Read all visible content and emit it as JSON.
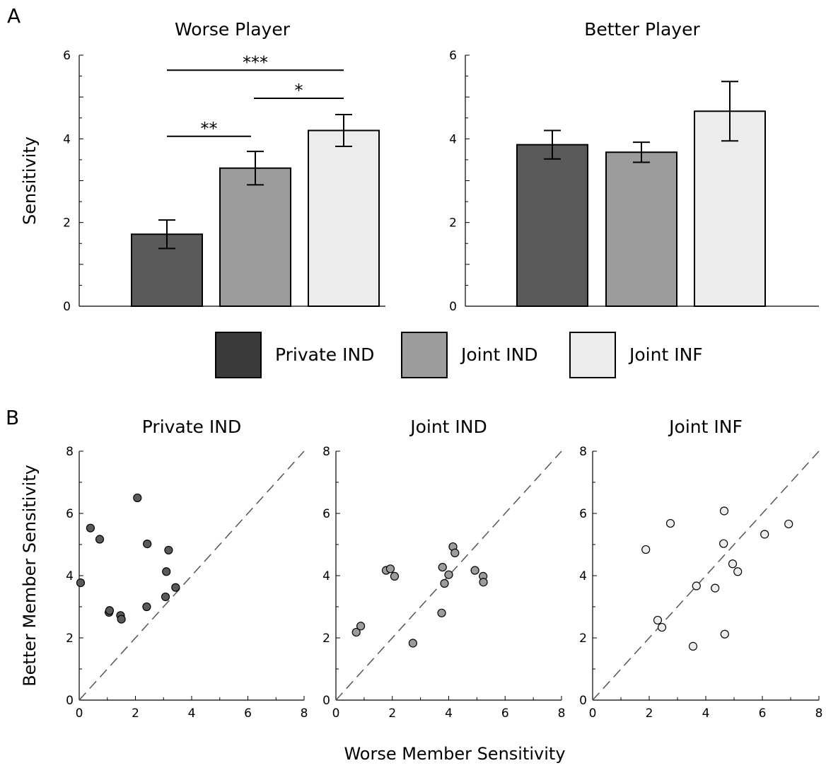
{
  "panels": {
    "a_letter": "A",
    "b_letter": "B"
  },
  "chart_data": [
    {
      "type": "bar",
      "title": "Worse Player",
      "ylabel": "Sensitivity",
      "ylim": [
        0,
        6
      ],
      "yticks": [
        "0",
        "2",
        "4",
        "6"
      ],
      "categories": [
        "Private IND",
        "Joint IND",
        "Joint INF"
      ],
      "values": [
        1.72,
        3.3,
        4.2
      ],
      "errors": [
        0.34,
        0.4,
        0.38
      ],
      "colors": [
        "#5a5a5a",
        "#9c9c9c",
        "#ececec"
      ],
      "significance": [
        {
          "label": "***",
          "from": 0,
          "to": 2,
          "y": 5.64
        },
        {
          "label": "*",
          "from": 1,
          "to": 2,
          "y": 4.97
        },
        {
          "label": "**",
          "from": 0,
          "to": 1,
          "y": 4.06
        }
      ]
    },
    {
      "type": "bar",
      "title": "Better Player",
      "ylim": [
        0,
        6
      ],
      "yticks": [
        "0",
        "2",
        "4",
        "6"
      ],
      "categories": [
        "Private IND",
        "Joint IND",
        "Joint INF"
      ],
      "values": [
        3.86,
        3.68,
        4.66
      ],
      "errors": [
        0.34,
        0.24,
        0.71
      ],
      "colors": [
        "#5a5a5a",
        "#9c9c9c",
        "#ececec"
      ]
    },
    {
      "type": "scatter",
      "title": "Private IND",
      "ylabel": "Better Member Sensitivity",
      "xlim": [
        0,
        8
      ],
      "ylim": [
        0,
        8
      ],
      "xticks": [
        "0",
        "2",
        "4",
        "6",
        "8"
      ],
      "yticks": [
        "0",
        "2",
        "4",
        "6",
        "8"
      ],
      "color": "#5a5a5a",
      "points": [
        [
          0.05,
          3.77
        ],
        [
          0.4,
          5.53
        ],
        [
          0.73,
          5.17
        ],
        [
          1.06,
          2.82
        ],
        [
          1.08,
          2.88
        ],
        [
          1.47,
          2.72
        ],
        [
          1.5,
          2.6
        ],
        [
          2.07,
          6.5
        ],
        [
          2.4,
          3.0
        ],
        [
          2.42,
          5.02
        ],
        [
          3.07,
          3.32
        ],
        [
          3.1,
          4.13
        ],
        [
          3.18,
          4.82
        ],
        [
          3.43,
          3.62
        ]
      ]
    },
    {
      "type": "scatter",
      "title": "Joint IND",
      "xlim": [
        0,
        8
      ],
      "ylim": [
        0,
        8
      ],
      "xticks": [
        "0",
        "2",
        "4",
        "6",
        "8"
      ],
      "yticks": [
        "0",
        "2",
        "4",
        "6",
        "8"
      ],
      "color": "#9c9c9c",
      "points": [
        [
          0.72,
          2.18
        ],
        [
          0.88,
          2.38
        ],
        [
          1.78,
          4.17
        ],
        [
          1.93,
          4.22
        ],
        [
          2.08,
          3.98
        ],
        [
          2.73,
          1.83
        ],
        [
          3.75,
          2.8
        ],
        [
          3.78,
          4.27
        ],
        [
          3.85,
          3.75
        ],
        [
          4.0,
          4.03
        ],
        [
          4.15,
          4.93
        ],
        [
          4.22,
          4.73
        ],
        [
          4.93,
          4.17
        ],
        [
          5.22,
          3.98
        ],
        [
          5.23,
          3.79
        ]
      ]
    },
    {
      "type": "scatter",
      "title": "Joint INF",
      "xlim": [
        0,
        8
      ],
      "ylim": [
        0,
        8
      ],
      "xticks": [
        "0",
        "2",
        "4",
        "6",
        "8"
      ],
      "yticks": [
        "0",
        "2",
        "4",
        "6",
        "8"
      ],
      "color": "#ececec",
      "points": [
        [
          1.88,
          4.84
        ],
        [
          2.3,
          2.57
        ],
        [
          2.45,
          2.34
        ],
        [
          2.75,
          5.68
        ],
        [
          3.55,
          1.73
        ],
        [
          3.67,
          3.67
        ],
        [
          4.33,
          3.6
        ],
        [
          4.63,
          5.03
        ],
        [
          4.65,
          6.08
        ],
        [
          4.67,
          2.12
        ],
        [
          4.95,
          4.38
        ],
        [
          5.13,
          4.13
        ],
        [
          6.08,
          5.33
        ],
        [
          6.93,
          5.66
        ]
      ]
    }
  ],
  "legend": [
    {
      "label": "Private IND",
      "color": "#3a3a3a"
    },
    {
      "label": "Joint IND",
      "color": "#9c9c9c"
    },
    {
      "label": "Joint INF",
      "color": "#ececec"
    }
  ],
  "shared_xlabel": "Worse Member Sensitivity"
}
